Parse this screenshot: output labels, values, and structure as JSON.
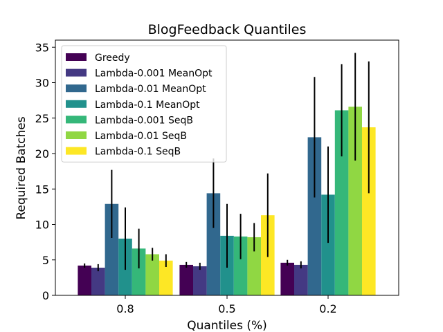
{
  "chart_data": {
    "type": "bar",
    "title": "BlogFeedback Quantiles",
    "xlabel": "Quantiles (%)",
    "ylabel": "Required Batches",
    "categories": [
      "0.8",
      "0.5",
      "0.2"
    ],
    "ylim": [
      0,
      36
    ],
    "yticks": [
      "0",
      "5",
      "10",
      "15",
      "20",
      "25",
      "30",
      "35"
    ],
    "legend_position": "top-left",
    "series": [
      {
        "name": "Greedy",
        "color": "#440154",
        "values": [
          4.2,
          4.3,
          4.6
        ],
        "errors": [
          0.3,
          0.4,
          0.4
        ]
      },
      {
        "name": "Lambda-0.001 MeanOpt",
        "color": "#443983",
        "values": [
          3.9,
          4.1,
          4.3
        ],
        "errors": [
          0.5,
          0.5,
          0.5
        ]
      },
      {
        "name": "Lambda-0.01 MeanOpt",
        "color": "#31688e",
        "values": [
          12.9,
          14.4,
          22.3
        ],
        "errors": [
          4.8,
          4.9,
          8.5
        ]
      },
      {
        "name": "Lambda-0.1 MeanOpt",
        "color": "#21918c",
        "values": [
          8.0,
          8.4,
          14.2
        ],
        "errors": [
          4.4,
          4.5,
          6.8
        ]
      },
      {
        "name": "Lambda-0.001 SeqB",
        "color": "#35b779",
        "values": [
          6.6,
          8.3,
          26.1
        ],
        "errors": [
          2.8,
          3.2,
          6.5
        ]
      },
      {
        "name": "Lambda-0.01 SeqB",
        "color": "#90d743",
        "values": [
          5.8,
          8.2,
          26.6
        ],
        "errors": [
          0.9,
          2.0,
          7.6
        ]
      },
      {
        "name": "Lambda-0.1 SeqB",
        "color": "#fde725",
        "values": [
          4.9,
          11.3,
          23.7
        ],
        "errors": [
          0.9,
          5.9,
          9.3
        ]
      }
    ]
  }
}
